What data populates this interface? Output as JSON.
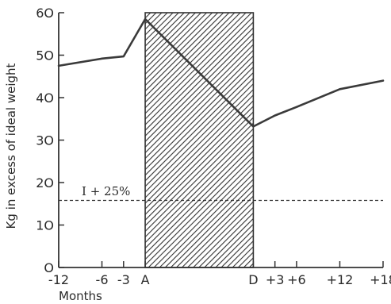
{
  "chart_data": {
    "type": "line",
    "title": "",
    "xlabel": "Months",
    "ylabel": "Kg in excess of ideal weight",
    "ylim": [
      0,
      60
    ],
    "yticks": [
      0,
      10,
      20,
      30,
      40,
      50,
      60
    ],
    "ytick_labels": [
      "O",
      "1O",
      "2O",
      "3O",
      "4O",
      "5O",
      "6O"
    ],
    "x_categories": [
      {
        "label": "-12",
        "value": -12
      },
      {
        "label": "-6",
        "value": -6
      },
      {
        "label": "-3",
        "value": -3
      },
      {
        "label": "A",
        "value": 0
      },
      {
        "label": "D",
        "value": 15
      },
      {
        "label": "+3",
        "value": 18
      },
      {
        "label": "+6",
        "value": 21
      },
      {
        "label": "+12",
        "value": 27
      },
      {
        "label": "+18",
        "value": 33
      }
    ],
    "series": [
      {
        "points": [
          {
            "x": -12,
            "y": 47.5
          },
          {
            "x": -6,
            "y": 49.2
          },
          {
            "x": -3,
            "y": 49.7
          },
          {
            "x": 0,
            "y": 58.5
          },
          {
            "x": 15,
            "y": 33.2
          },
          {
            "x": 18,
            "y": 35.8
          },
          {
            "x": 21,
            "y": 37.8
          },
          {
            "x": 27,
            "y": 42
          },
          {
            "x": 33,
            "y": 44
          }
        ],
        "color": "#3a3a3a"
      }
    ],
    "reference_line": {
      "y": 15.8,
      "label": "I + 25%",
      "style": "dashed"
    },
    "shaded_region": {
      "x_start": 0,
      "x_end": 15,
      "pattern": "diagonal-hatch"
    },
    "grid": false,
    "legend": "none"
  }
}
